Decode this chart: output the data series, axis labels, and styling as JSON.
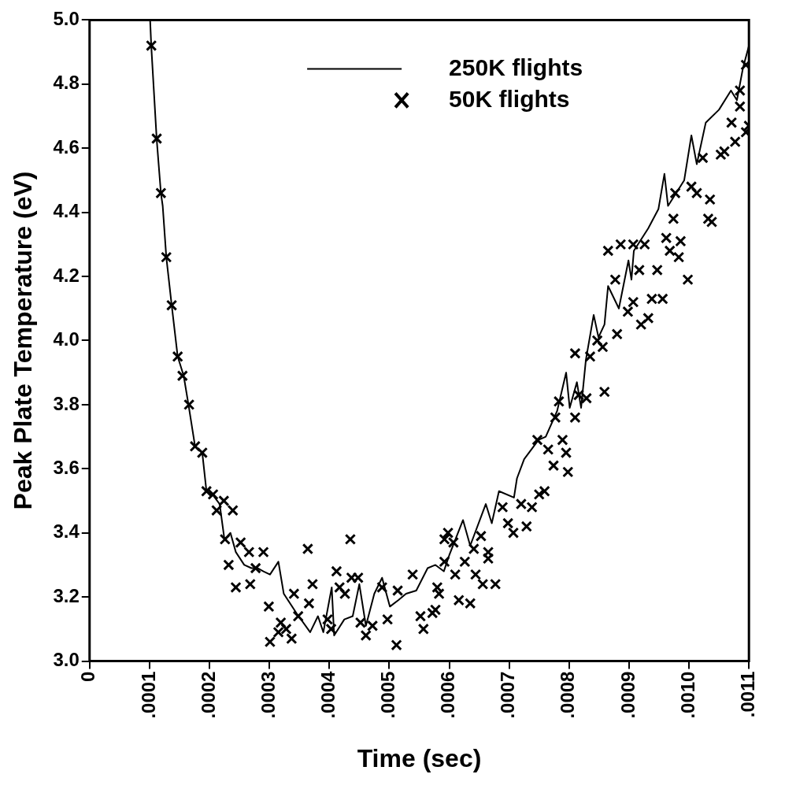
{
  "chart_data": {
    "type": "line",
    "xlabel": "Time (sec)",
    "ylabel": "Peak Plate Temperature (eV)",
    "xlim": [
      0,
      0.0011
    ],
    "ylim": [
      3.0,
      5.0
    ],
    "xticks": [
      0,
      {
        "value": 0.0001,
        "label": ".0001"
      },
      {
        "value": 0.0002,
        "label": ".0002"
      },
      {
        "value": 0.0003,
        "label": ".0003"
      },
      {
        "value": 0.0004,
        "label": ".0004"
      },
      {
        "value": 0.0005,
        "label": ".0005"
      },
      {
        "value": 0.0006,
        "label": ".0006"
      },
      {
        "value": 0.0007,
        "label": ".0007"
      },
      {
        "value": 0.0008,
        "label": ".0008"
      },
      {
        "value": 0.0009,
        "label": ".0009"
      },
      {
        "value": 0.001,
        "label": ".0010"
      },
      {
        "value": 0.0011,
        "label": ".0011"
      }
    ],
    "yticks": [
      {
        "value": 3.0,
        "label": "3.0"
      },
      {
        "value": 3.2,
        "label": "3.2"
      },
      {
        "value": 3.4,
        "label": "3.4"
      },
      {
        "value": 3.6,
        "label": "3.6"
      },
      {
        "value": 3.8,
        "label": "3.8"
      },
      {
        "value": 4.0,
        "label": "4.0"
      },
      {
        "value": 4.2,
        "label": "4.2"
      },
      {
        "value": 4.4,
        "label": "4.4"
      },
      {
        "value": 4.6,
        "label": "4.6"
      },
      {
        "value": 4.8,
        "label": "4.8"
      },
      {
        "value": 5.0,
        "label": "5.0"
      }
    ],
    "grid": false,
    "legend": "top right",
    "series": [
      {
        "name": "250K flights",
        "type": "line",
        "marker": "none",
        "line_style": "solid",
        "color": "#000000",
        "x": [
          0.000101,
          0.000103,
          0.000112,
          0.000119,
          0.000122,
          0.000128,
          0.000137,
          0.000147,
          0.000157,
          0.000165,
          0.000176,
          0.000188,
          0.000195,
          0.000205,
          0.000217,
          0.000225,
          0.000235,
          0.000244,
          0.000258,
          0.00027,
          0.00028,
          0.00029,
          0.000301,
          0.000315,
          0.000324,
          0.000345,
          0.000368,
          0.000381,
          0.00039,
          0.000404,
          0.000408,
          0.000425,
          0.000439,
          0.00045,
          0.000461,
          0.000475,
          0.000488,
          0.000501,
          0.000515,
          0.000528,
          0.000545,
          0.000564,
          0.000577,
          0.000591,
          0.0006,
          0.000623,
          0.000635,
          0.000661,
          0.000671,
          0.000683,
          0.000708,
          0.000713,
          0.000725,
          0.000749,
          0.000761,
          0.00078,
          0.000795,
          0.000801,
          0.000813,
          0.00082,
          0.000828,
          0.000841,
          0.000849,
          0.000859,
          0.000865,
          0.000883,
          0.000899,
          0.000904,
          0.000908,
          0.000932,
          0.000949,
          0.000959,
          0.000965,
          0.000992,
          0.001004,
          0.001013,
          0.001028,
          0.00105,
          0.00107,
          0.00108,
          0.00109,
          0.0011
        ],
        "values": [
          5.0,
          4.916,
          4.627,
          4.46,
          4.42,
          4.26,
          4.11,
          3.95,
          3.89,
          3.8,
          3.67,
          3.65,
          3.53,
          3.52,
          3.49,
          3.38,
          3.4,
          3.34,
          3.3,
          3.29,
          3.29,
          3.28,
          3.27,
          3.31,
          3.21,
          3.15,
          3.09,
          3.14,
          3.09,
          3.23,
          3.08,
          3.13,
          3.14,
          3.24,
          3.11,
          3.21,
          3.26,
          3.17,
          3.19,
          3.21,
          3.22,
          3.29,
          3.3,
          3.28,
          3.33,
          3.44,
          3.36,
          3.49,
          3.43,
          3.53,
          3.51,
          3.57,
          3.63,
          3.69,
          3.7,
          3.78,
          3.9,
          3.79,
          3.87,
          3.79,
          3.94,
          4.08,
          4.01,
          4.05,
          4.17,
          4.1,
          4.25,
          4.19,
          4.28,
          4.35,
          4.41,
          4.52,
          4.42,
          4.5,
          4.64,
          4.55,
          4.68,
          4.72,
          4.78,
          4.75,
          4.85,
          4.92
        ]
      },
      {
        "name": "50K flights",
        "type": "scatter",
        "marker": "cross",
        "color": "#000000",
        "x": [
          0.000103,
          0.000112,
          0.000119,
          0.000128,
          0.000137,
          0.000147,
          0.000155,
          0.000166,
          0.000176,
          0.000188,
          0.000195,
          0.000206,
          0.000212,
          0.000224,
          0.000239,
          0.000226,
          0.000252,
          0.000232,
          0.000266,
          0.000244,
          0.000268,
          0.00029,
          0.000277,
          0.000299,
          0.000301,
          0.000315,
          0.000319,
          0.000337,
          0.000341,
          0.000328,
          0.000348,
          0.000364,
          0.000372,
          0.000366,
          0.000397,
          0.000403,
          0.000412,
          0.000417,
          0.000435,
          0.000437,
          0.000448,
          0.000426,
          0.000452,
          0.000461,
          0.000472,
          0.000488,
          0.000497,
          0.000512,
          0.000514,
          0.000539,
          0.000552,
          0.000557,
          0.000572,
          0.000583,
          0.000592,
          0.000577,
          0.00058,
          0.000598,
          0.000607,
          0.000592,
          0.00061,
          0.000616,
          0.000626,
          0.000635,
          0.000641,
          0.000644,
          0.000653,
          0.000656,
          0.000665,
          0.000665,
          0.000677,
          0.000689,
          0.000698,
          0.000707,
          0.00072,
          0.000729,
          0.000738,
          0.00075,
          0.000759,
          0.000747,
          0.000765,
          0.000774,
          0.000789,
          0.000795,
          0.000798,
          0.000777,
          0.000783,
          0.00081,
          0.000816,
          0.000829,
          0.000859,
          0.00081,
          0.000835,
          0.000856,
          0.000847,
          0.000865,
          0.000877,
          0.00088,
          0.000898,
          0.000907,
          0.000886,
          0.000907,
          0.000926,
          0.000917,
          0.00092,
          0.000932,
          0.000938,
          0.000947,
          0.000956,
          0.000962,
          0.000968,
          0.000974,
          0.000983,
          0.000986,
          0.000998,
          0.000977,
          0.001004,
          0.001013,
          0.001035,
          0.001032,
          0.001038,
          0.001023,
          0.001053,
          0.001059,
          0.001077,
          0.001071,
          0.001095,
          0.001085,
          0.001085,
          0.001095,
          0.0011
        ],
        "values": [
          4.92,
          4.63,
          4.46,
          4.26,
          4.11,
          3.95,
          3.89,
          3.8,
          3.67,
          3.65,
          3.53,
          3.52,
          3.47,
          3.5,
          3.47,
          3.38,
          3.37,
          3.3,
          3.34,
          3.23,
          3.24,
          3.34,
          3.29,
          3.17,
          3.06,
          3.09,
          3.12,
          3.07,
          3.21,
          3.1,
          3.14,
          3.35,
          3.24,
          3.18,
          3.13,
          3.1,
          3.28,
          3.23,
          3.38,
          3.26,
          3.26,
          3.21,
          3.12,
          3.08,
          3.11,
          3.23,
          3.13,
          3.05,
          3.22,
          3.27,
          3.14,
          3.1,
          3.15,
          3.21,
          3.38,
          3.16,
          3.23,
          3.4,
          3.37,
          3.31,
          3.27,
          3.19,
          3.31,
          3.18,
          3.35,
          3.27,
          3.39,
          3.24,
          3.34,
          3.32,
          3.24,
          3.48,
          3.43,
          3.4,
          3.49,
          3.42,
          3.48,
          3.52,
          3.53,
          3.69,
          3.66,
          3.61,
          3.69,
          3.65,
          3.59,
          3.76,
          3.81,
          3.76,
          3.83,
          3.82,
          3.84,
          3.96,
          3.95,
          3.98,
          4.0,
          4.28,
          4.19,
          4.02,
          4.09,
          4.12,
          4.3,
          4.3,
          4.3,
          4.22,
          4.05,
          4.07,
          4.13,
          4.22,
          4.13,
          4.32,
          4.28,
          4.38,
          4.26,
          4.31,
          4.19,
          4.46,
          4.48,
          4.46,
          4.44,
          4.38,
          4.37,
          4.57,
          4.58,
          4.59,
          4.62,
          4.68,
          4.65,
          4.78,
          4.73,
          4.86,
          4.67
        ]
      }
    ]
  }
}
